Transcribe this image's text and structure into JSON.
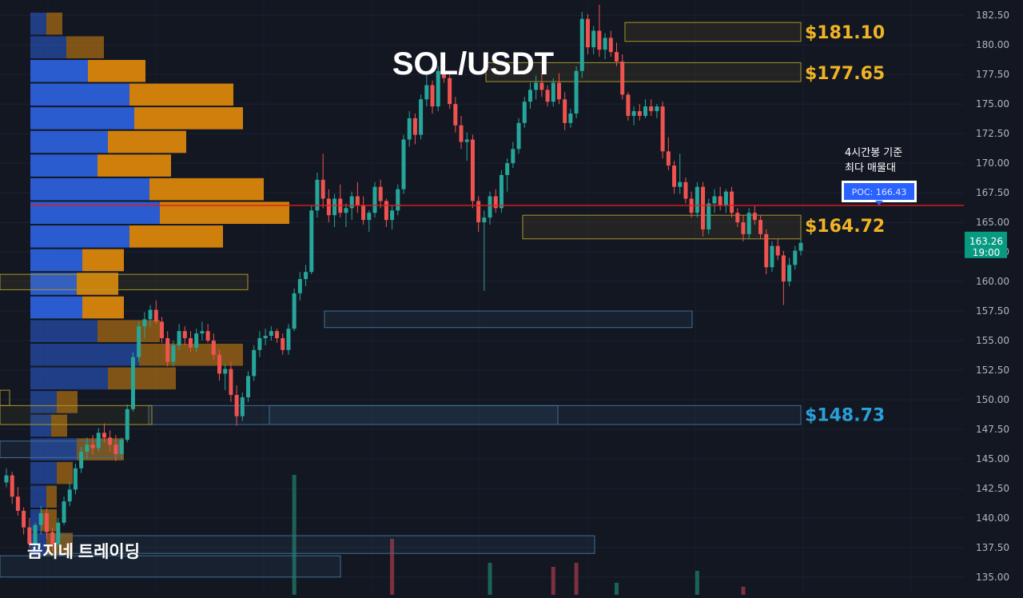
{
  "chart_data": {
    "type": "candlestick",
    "title": "SOL/USDT",
    "watermark": "곰지네 트레이딩",
    "ylim": [
      133.5,
      183.8
    ],
    "yticks": [
      "135.00",
      "137.50",
      "140.00",
      "142.50",
      "145.00",
      "147.50",
      "150.00",
      "152.50",
      "155.00",
      "157.50",
      "160.00",
      "162.50",
      "165.00",
      "167.50",
      "170.00",
      "172.50",
      "175.00",
      "177.50",
      "180.00",
      "182.50"
    ],
    "last_price": {
      "value": 163.26,
      "label": "163.26",
      "time": "19:00"
    },
    "poc": {
      "value": 166.43,
      "label": "POC: 166.43",
      "note_line1": "4시간봉 기준",
      "note_line2": "최다 매물대"
    },
    "price_labels": [
      {
        "value": 181.1,
        "text": "$181.10",
        "color": "#f0b323"
      },
      {
        "value": 177.65,
        "text": "$177.65",
        "color": "#f0b323"
      },
      {
        "value": 164.72,
        "text": "$164.72",
        "color": "#f0b323"
      },
      {
        "value": 148.73,
        "text": "$148.73",
        "color": "#2a9fd8"
      }
    ],
    "zones": [
      {
        "from": 180.3,
        "to": 181.9,
        "kind": "resistance"
      },
      {
        "from": 176.9,
        "to": 178.5,
        "kind": "resistance"
      },
      {
        "from": 163.6,
        "to": 165.6,
        "kind": "resistance"
      },
      {
        "from": 147.9,
        "to": 149.5,
        "kind": "support"
      },
      {
        "from": 156.1,
        "to": 157.5,
        "kind": "support"
      },
      {
        "from": 137.0,
        "to": 138.5,
        "kind": "support"
      },
      {
        "from": 135.0,
        "to": 136.8,
        "kind": "support"
      },
      {
        "from": 159.3,
        "to": 160.6,
        "kind": "resistance"
      },
      {
        "from": 145.1,
        "to": 146.5,
        "kind": "support"
      }
    ],
    "volume_profile": [
      {
        "price": 181.8,
        "buy": 20,
        "sell": 20
      },
      {
        "price": 179.8,
        "buy": 45,
        "sell": 47
      },
      {
        "price": 177.8,
        "buy": 72,
        "sell": 72
      },
      {
        "price": 175.8,
        "buy": 124,
        "sell": 130
      },
      {
        "price": 173.8,
        "buy": 130,
        "sell": 136
      },
      {
        "price": 171.8,
        "buy": 97,
        "sell": 98
      },
      {
        "price": 169.8,
        "buy": 84,
        "sell": 92
      },
      {
        "price": 167.8,
        "buy": 149,
        "sell": 143
      },
      {
        "price": 165.8,
        "buy": 162,
        "sell": 162
      },
      {
        "price": 163.8,
        "buy": 124,
        "sell": 117
      },
      {
        "price": 161.8,
        "buy": 65,
        "sell": 52
      },
      {
        "price": 159.8,
        "buy": 58,
        "sell": 52
      },
      {
        "price": 157.8,
        "buy": 65,
        "sell": 52
      },
      {
        "price": 155.8,
        "buy": 84,
        "sell": 78
      },
      {
        "price": 153.8,
        "buy": 136,
        "sell": 130
      },
      {
        "price": 151.8,
        "buy": 97,
        "sell": 85
      },
      {
        "price": 149.8,
        "buy": 33,
        "sell": 26
      },
      {
        "price": 147.8,
        "buy": 26,
        "sell": 20
      },
      {
        "price": 145.8,
        "buy": 58,
        "sell": 59
      },
      {
        "price": 143.8,
        "buy": 33,
        "sell": 20
      },
      {
        "price": 141.8,
        "buy": 20,
        "sell": 13
      },
      {
        "price": 139.8,
        "buy": 13,
        "sell": 20
      },
      {
        "price": 137.8,
        "buy": 20,
        "sell": 33
      }
    ],
    "candles": [
      [
        143.0,
        144.2,
        142.6,
        143.6
      ],
      [
        143.6,
        143.9,
        141.2,
        141.8
      ],
      [
        141.8,
        142.6,
        140.2,
        140.6
      ],
      [
        140.6,
        140.9,
        138.6,
        139.2
      ],
      [
        139.2,
        140.0,
        137.4,
        137.8
      ],
      [
        137.8,
        139.6,
        137.4,
        139.4
      ],
      [
        139.4,
        141.0,
        138.6,
        140.4
      ],
      [
        140.4,
        140.8,
        138.2,
        138.8
      ],
      [
        138.8,
        139.2,
        137.2,
        137.8
      ],
      [
        137.8,
        140.0,
        137.6,
        139.6
      ],
      [
        139.6,
        141.8,
        139.4,
        141.4
      ],
      [
        141.4,
        143.0,
        141.0,
        142.4
      ],
      [
        142.4,
        144.6,
        142.0,
        144.2
      ],
      [
        144.2,
        146.0,
        143.8,
        145.6
      ],
      [
        145.6,
        146.8,
        145.0,
        146.2
      ],
      [
        146.2,
        147.0,
        145.4,
        145.9
      ],
      [
        145.9,
        147.6,
        145.6,
        147.2
      ],
      [
        147.2,
        148.0,
        146.4,
        146.8
      ],
      [
        146.8,
        147.4,
        145.6,
        146.2
      ],
      [
        146.2,
        147.0,
        144.8,
        145.4
      ],
      [
        145.4,
        146.8,
        145.0,
        146.6
      ],
      [
        146.6,
        149.6,
        146.4,
        149.2
      ],
      [
        149.2,
        154.0,
        149.0,
        153.6
      ],
      [
        153.6,
        156.6,
        153.2,
        156.2
      ],
      [
        156.2,
        157.4,
        155.2,
        156.8
      ],
      [
        156.8,
        158.0,
        156.2,
        157.6
      ],
      [
        157.6,
        158.4,
        156.4,
        156.6
      ],
      [
        156.6,
        157.0,
        154.8,
        155.2
      ],
      [
        155.2,
        155.8,
        152.8,
        153.2
      ],
      [
        153.2,
        155.0,
        152.8,
        154.6
      ],
      [
        154.6,
        156.4,
        154.2,
        155.8
      ],
      [
        155.8,
        156.2,
        154.6,
        155.2
      ],
      [
        155.2,
        155.8,
        154.0,
        154.4
      ],
      [
        154.4,
        156.0,
        154.0,
        155.6
      ],
      [
        155.6,
        156.6,
        155.0,
        155.8
      ],
      [
        155.8,
        156.4,
        154.8,
        155.0
      ],
      [
        155.0,
        155.6,
        153.4,
        153.8
      ],
      [
        153.8,
        154.2,
        151.6,
        152.2
      ],
      [
        152.2,
        153.0,
        150.8,
        152.6
      ],
      [
        152.6,
        153.2,
        149.8,
        150.4
      ],
      [
        150.4,
        151.2,
        147.8,
        148.6
      ],
      [
        148.6,
        150.6,
        148.2,
        150.2
      ],
      [
        150.2,
        152.4,
        149.8,
        152.0
      ],
      [
        152.0,
        154.6,
        151.6,
        154.2
      ],
      [
        154.2,
        155.8,
        153.6,
        155.2
      ],
      [
        155.2,
        156.0,
        154.6,
        155.4
      ],
      [
        155.4,
        156.2,
        155.0,
        155.8
      ],
      [
        155.8,
        156.0,
        154.8,
        155.2
      ],
      [
        155.2,
        155.6,
        153.8,
        154.2
      ],
      [
        154.2,
        156.4,
        153.8,
        156.0
      ],
      [
        156.0,
        159.4,
        155.8,
        159.0
      ],
      [
        159.0,
        160.8,
        158.4,
        160.2
      ],
      [
        160.2,
        161.4,
        159.6,
        160.8
      ],
      [
        160.8,
        166.4,
        160.6,
        166.0
      ],
      [
        166.0,
        169.2,
        165.4,
        168.6
      ],
      [
        168.6,
        170.8,
        166.2,
        167.0
      ],
      [
        167.0,
        167.8,
        165.0,
        165.6
      ],
      [
        165.6,
        167.4,
        164.6,
        167.0
      ],
      [
        167.0,
        168.2,
        165.4,
        165.8
      ],
      [
        165.8,
        166.6,
        164.6,
        166.2
      ],
      [
        166.2,
        167.6,
        165.2,
        167.2
      ],
      [
        167.2,
        168.4,
        165.8,
        166.4
      ],
      [
        166.4,
        167.2,
        164.8,
        165.2
      ],
      [
        165.2,
        166.0,
        164.2,
        165.8
      ],
      [
        165.8,
        168.4,
        165.4,
        168.0
      ],
      [
        168.0,
        168.6,
        166.2,
        166.8
      ],
      [
        166.8,
        167.0,
        164.6,
        165.2
      ],
      [
        165.2,
        166.4,
        164.4,
        166.0
      ],
      [
        166.0,
        168.2,
        165.6,
        167.8
      ],
      [
        167.8,
        172.4,
        167.4,
        172.0
      ],
      [
        172.0,
        174.4,
        171.4,
        173.8
      ],
      [
        173.8,
        174.2,
        171.6,
        172.4
      ],
      [
        172.4,
        175.8,
        172.0,
        175.4
      ],
      [
        175.4,
        177.6,
        174.8,
        176.6
      ],
      [
        176.6,
        177.0,
        174.2,
        174.8
      ],
      [
        174.8,
        178.2,
        174.4,
        177.8
      ],
      [
        177.8,
        178.0,
        176.8,
        177.2
      ],
      [
        177.2,
        177.8,
        174.6,
        175.0
      ],
      [
        175.0,
        175.6,
        172.6,
        173.2
      ],
      [
        173.2,
        174.0,
        171.2,
        171.8
      ],
      [
        171.8,
        172.6,
        170.2,
        172.0
      ],
      [
        172.0,
        172.4,
        166.2,
        166.8
      ],
      [
        166.8,
        167.2,
        164.2,
        165.0
      ],
      [
        165.0,
        166.0,
        159.2,
        165.4
      ],
      [
        165.4,
        167.6,
        164.8,
        167.2
      ],
      [
        167.2,
        167.8,
        165.8,
        166.2
      ],
      [
        166.2,
        169.4,
        165.8,
        169.0
      ],
      [
        169.0,
        170.4,
        167.6,
        170.0
      ],
      [
        170.0,
        171.8,
        169.6,
        171.2
      ],
      [
        171.2,
        173.8,
        170.8,
        173.4
      ],
      [
        173.4,
        175.6,
        173.0,
        175.2
      ],
      [
        175.2,
        176.8,
        174.6,
        176.2
      ],
      [
        176.2,
        177.4,
        175.4,
        176.8
      ],
      [
        176.8,
        177.6,
        175.6,
        176.2
      ],
      [
        176.2,
        176.6,
        174.8,
        175.2
      ],
      [
        175.2,
        177.2,
        174.8,
        176.8
      ],
      [
        176.8,
        177.6,
        175.0,
        175.4
      ],
      [
        175.4,
        176.0,
        172.8,
        173.4
      ],
      [
        173.4,
        174.6,
        173.0,
        174.2
      ],
      [
        174.2,
        178.2,
        173.8,
        177.8
      ],
      [
        177.8,
        182.8,
        177.2,
        182.2
      ],
      [
        182.2,
        182.6,
        179.2,
        179.8
      ],
      [
        179.8,
        181.6,
        179.2,
        181.2
      ],
      [
        181.2,
        183.4,
        179.0,
        179.6
      ],
      [
        179.6,
        181.0,
        178.8,
        180.6
      ],
      [
        180.6,
        181.2,
        179.0,
        179.4
      ],
      [
        179.4,
        180.2,
        178.2,
        178.6
      ],
      [
        178.6,
        179.2,
        175.4,
        175.8
      ],
      [
        175.8,
        176.0,
        173.6,
        174.0
      ],
      [
        174.0,
        174.8,
        173.2,
        174.4
      ],
      [
        174.4,
        175.0,
        173.6,
        174.0
      ],
      [
        174.0,
        175.4,
        173.8,
        174.8
      ],
      [
        174.8,
        175.4,
        174.0,
        174.4
      ],
      [
        174.4,
        175.0,
        173.8,
        174.8
      ],
      [
        174.8,
        175.2,
        170.4,
        171.0
      ],
      [
        171.0,
        172.2,
        169.4,
        169.8
      ],
      [
        169.8,
        170.2,
        167.4,
        168.0
      ],
      [
        168.0,
        170.8,
        167.4,
        168.4
      ],
      [
        168.4,
        168.8,
        166.6,
        167.0
      ],
      [
        167.0,
        167.6,
        165.4,
        165.8
      ],
      [
        165.8,
        168.4,
        165.4,
        168.0
      ],
      [
        168.0,
        168.4,
        163.8,
        164.4
      ],
      [
        164.4,
        167.0,
        164.0,
        166.6
      ],
      [
        166.6,
        167.8,
        165.8,
        167.2
      ],
      [
        167.2,
        168.0,
        166.0,
        166.4
      ],
      [
        166.4,
        167.8,
        165.8,
        167.6
      ],
      [
        167.6,
        168.0,
        165.4,
        165.8
      ],
      [
        165.8,
        166.2,
        164.6,
        165.0
      ],
      [
        165.0,
        165.6,
        163.4,
        164.0
      ],
      [
        164.0,
        166.2,
        163.6,
        165.8
      ],
      [
        165.8,
        166.4,
        164.8,
        165.2
      ],
      [
        165.2,
        165.6,
        163.6,
        164.0
      ],
      [
        164.0,
        164.4,
        160.6,
        161.2
      ],
      [
        161.2,
        163.4,
        160.8,
        163.0
      ],
      [
        163.0,
        163.6,
        161.8,
        162.2
      ],
      [
        162.2,
        162.6,
        158.0,
        160.0
      ],
      [
        160.0,
        162.0,
        159.6,
        161.4
      ],
      [
        161.4,
        163.0,
        161.0,
        162.6
      ],
      [
        162.6,
        163.6,
        162.2,
        163.26
      ]
    ],
    "volumes": [
      {
        "i": 50,
        "h": 150,
        "up": true
      },
      {
        "i": 67,
        "h": 70,
        "up": false
      },
      {
        "i": 84,
        "h": 40,
        "up": true
      },
      {
        "i": 95,
        "h": 35,
        "up": false
      },
      {
        "i": 99,
        "h": 40,
        "up": false
      },
      {
        "i": 106,
        "h": 15,
        "up": true
      },
      {
        "i": 120,
        "h": 30,
        "up": true
      },
      {
        "i": 128,
        "h": 10,
        "up": false
      }
    ]
  }
}
